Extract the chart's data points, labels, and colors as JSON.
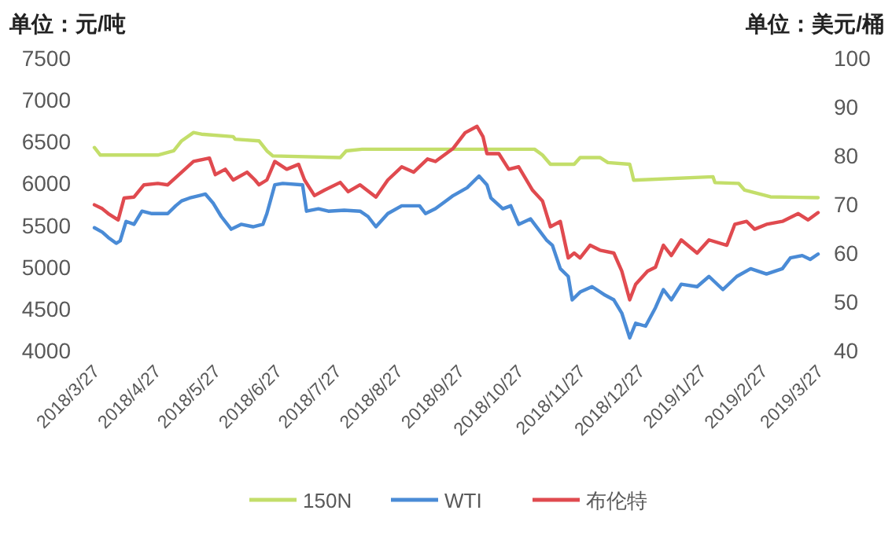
{
  "chart_data": {
    "type": "line",
    "ylabel": "单位：元/吨",
    "y2label": "单位：美元/桶",
    "xlim": [
      "2018-03-27",
      "2019-03-27"
    ],
    "xticks": [
      {
        "value": "2018-03-27",
        "label": "2018/3/27"
      },
      {
        "value": "2018-04-27",
        "label": "2018/4/27"
      },
      {
        "value": "2018-05-27",
        "label": "2018/5/27"
      },
      {
        "value": "2018-06-27",
        "label": "2018/6/27"
      },
      {
        "value": "2018-07-27",
        "label": "2018/7/27"
      },
      {
        "value": "2018-08-27",
        "label": "2018/8/27"
      },
      {
        "value": "2018-09-27",
        "label": "2018/9/27"
      },
      {
        "value": "2018-10-27",
        "label": "2018/10/27"
      },
      {
        "value": "2018-11-27",
        "label": "2018/11/27"
      },
      {
        "value": "2018-12-27",
        "label": "2018/12/27"
      },
      {
        "value": "2019-01-27",
        "label": "2019/1/27"
      },
      {
        "value": "2019-02-27",
        "label": "2019/2/27"
      },
      {
        "value": "2019-03-27",
        "label": "2019/3/27"
      }
    ],
    "ylim": [
      4000,
      7500
    ],
    "yticks": [
      4000,
      4500,
      5000,
      5500,
      6000,
      6500,
      7000,
      7500
    ],
    "y2lim": [
      40,
      100
    ],
    "y2ticks": [
      40,
      50,
      60,
      70,
      80,
      90,
      100
    ],
    "legend": "bottom",
    "series": [
      {
        "name": "150N",
        "color": "#c3de6a",
        "axis": "y",
        "x": [
          "2018-03-27",
          "2018-03-30",
          "2018-04-28",
          "2018-05-06",
          "2018-05-10",
          "2018-05-16",
          "2018-05-20",
          "2018-06-05",
          "2018-06-06",
          "2018-06-18",
          "2018-06-22",
          "2018-06-25",
          "2018-07-29",
          "2018-08-01",
          "2018-08-09",
          "2018-09-26",
          "2018-11-04",
          "2018-11-08",
          "2018-11-12",
          "2018-11-24",
          "2018-11-27",
          "2018-12-07",
          "2018-12-11",
          "2018-12-22",
          "2018-12-23",
          "2018-12-24",
          "2019-02-02",
          "2019-02-03",
          "2019-02-15",
          "2019-02-18",
          "2019-03-03",
          "2019-03-27"
        ],
        "values": [
          6430,
          6340,
          6340,
          6390,
          6510,
          6610,
          6590,
          6560,
          6530,
          6510,
          6390,
          6330,
          6310,
          6390,
          6410,
          6410,
          6410,
          6340,
          6230,
          6230,
          6310,
          6310,
          6250,
          6230,
          6140,
          6040,
          6080,
          6010,
          6000,
          5920,
          5840,
          5830
        ]
      },
      {
        "name": "WTI",
        "color": "#4a8bd6",
        "axis": "y2",
        "x": [
          "2018-03-27",
          "2018-03-31",
          "2018-04-03",
          "2018-04-07",
          "2018-04-09",
          "2018-04-12",
          "2018-04-16",
          "2018-04-20",
          "2018-04-25",
          "2018-05-03",
          "2018-05-07",
          "2018-05-10",
          "2018-05-14",
          "2018-05-22",
          "2018-05-26",
          "2018-05-30",
          "2018-06-04",
          "2018-06-09",
          "2018-06-15",
          "2018-06-20",
          "2018-06-22",
          "2018-06-26",
          "2018-06-30",
          "2018-07-10",
          "2018-07-12",
          "2018-07-18",
          "2018-07-23",
          "2018-07-31",
          "2018-08-08",
          "2018-08-12",
          "2018-08-16",
          "2018-08-22",
          "2018-08-29",
          "2018-09-07",
          "2018-09-10",
          "2018-09-15",
          "2018-09-24",
          "2018-10-01",
          "2018-10-07",
          "2018-10-11",
          "2018-10-13",
          "2018-10-19",
          "2018-10-23",
          "2018-10-27",
          "2018-11-02",
          "2018-11-10",
          "2018-11-13",
          "2018-11-17",
          "2018-11-21",
          "2018-11-23",
          "2018-11-27",
          "2018-12-03",
          "2018-12-09",
          "2018-12-14",
          "2018-12-18",
          "2018-12-22",
          "2018-12-25",
          "2018-12-30",
          "2019-01-04",
          "2019-01-08",
          "2019-01-12",
          "2019-01-17",
          "2019-01-25",
          "2019-01-31",
          "2019-02-07",
          "2019-02-14",
          "2019-02-21",
          "2019-03-01",
          "2019-03-09",
          "2019-03-13",
          "2019-03-19",
          "2019-03-23",
          "2019-03-27"
        ],
        "values": [
          65.2,
          64.3,
          63.2,
          62.0,
          62.5,
          66.5,
          65.9,
          68.6,
          68.1,
          68.1,
          69.7,
          70.7,
          71.3,
          72.1,
          70.2,
          67.5,
          64.9,
          65.9,
          65.4,
          65.9,
          68.1,
          74.0,
          74.3,
          74.0,
          68.6,
          69.1,
          68.6,
          68.8,
          68.6,
          67.5,
          65.4,
          68.1,
          69.7,
          69.7,
          68.1,
          69.1,
          71.8,
          73.4,
          75.8,
          74.0,
          71.3,
          69.1,
          69.7,
          65.9,
          67.0,
          62.7,
          61.6,
          56.8,
          55.2,
          50.4,
          52.0,
          53.1,
          51.5,
          50.4,
          47.7,
          42.6,
          45.6,
          45.0,
          48.8,
          52.5,
          50.4,
          53.6,
          53.1,
          55.2,
          52.5,
          55.2,
          56.8,
          55.7,
          56.8,
          59.0,
          59.5,
          58.7,
          59.8
        ]
      },
      {
        "name": "布伦特",
        "color": "#e04a4f",
        "axis": "y2",
        "x": [
          "2018-03-27",
          "2018-03-31",
          "2018-04-03",
          "2018-04-08",
          "2018-04-11",
          "2018-04-16",
          "2018-04-21",
          "2018-04-28",
          "2018-05-03",
          "2018-05-10",
          "2018-05-16",
          "2018-05-24",
          "2018-05-27",
          "2018-06-01",
          "2018-06-05",
          "2018-06-12",
          "2018-06-16",
          "2018-06-18",
          "2018-06-22",
          "2018-06-26",
          "2018-07-02",
          "2018-07-08",
          "2018-07-11",
          "2018-07-16",
          "2018-07-21",
          "2018-07-29",
          "2018-08-02",
          "2018-08-08",
          "2018-08-16",
          "2018-08-22",
          "2018-08-29",
          "2018-09-04",
          "2018-09-11",
          "2018-09-15",
          "2018-09-24",
          "2018-09-30",
          "2018-10-06",
          "2018-10-09",
          "2018-10-11",
          "2018-10-17",
          "2018-10-22",
          "2018-10-27",
          "2018-11-03",
          "2018-11-08",
          "2018-11-12",
          "2018-11-17",
          "2018-11-21",
          "2018-11-24",
          "2018-11-27",
          "2018-12-02",
          "2018-12-07",
          "2018-12-14",
          "2018-12-18",
          "2018-12-22",
          "2018-12-25",
          "2018-12-31",
          "2019-01-04",
          "2019-01-08",
          "2019-01-12",
          "2019-01-17",
          "2019-01-25",
          "2019-01-31",
          "2019-02-09",
          "2019-02-13",
          "2019-02-19",
          "2019-02-23",
          "2019-03-01",
          "2019-03-09",
          "2019-03-17",
          "2019-03-22",
          "2019-03-27"
        ],
        "values": [
          69.9,
          69.1,
          68.1,
          66.8,
          71.3,
          71.5,
          74.0,
          74.3,
          74.0,
          76.6,
          78.8,
          79.5,
          76.1,
          77.2,
          75.0,
          76.6,
          75.0,
          74.0,
          75.0,
          78.8,
          77.2,
          78.2,
          75.0,
          71.8,
          72.9,
          74.5,
          72.6,
          74.0,
          71.5,
          75.0,
          77.7,
          76.6,
          79.3,
          78.8,
          81.5,
          84.7,
          86.0,
          83.9,
          80.4,
          80.4,
          77.2,
          77.7,
          72.9,
          70.7,
          65.4,
          66.5,
          59.0,
          60.0,
          59.0,
          61.6,
          60.6,
          60.0,
          56.3,
          50.4,
          53.6,
          56.3,
          57.1,
          61.6,
          59.5,
          62.7,
          60.0,
          62.7,
          61.6,
          65.9,
          66.5,
          64.9,
          65.9,
          66.5,
          68.1,
          66.8,
          68.3
        ]
      }
    ]
  }
}
